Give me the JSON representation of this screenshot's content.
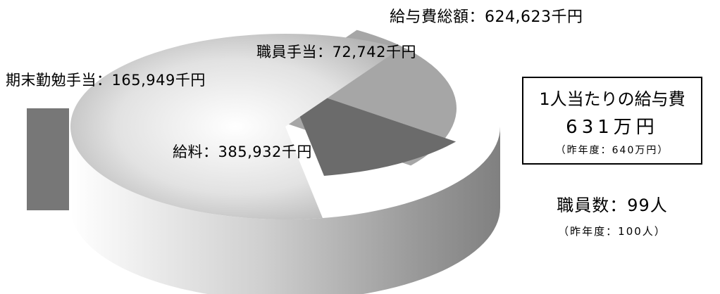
{
  "chart_data": {
    "type": "pie",
    "title": "給与費総額：624,623千円",
    "categories": [
      "給料",
      "期末勤勉手当",
      "職員手当"
    ],
    "values": [
      385932,
      165949,
      72742
    ],
    "labels": [
      "給料：385,932千円",
      "期末勤勉手当：165,949千円",
      "職員手当：72,742千円"
    ],
    "unit": "千円",
    "colors": [
      "#d8d8d8",
      "#a6a6a6",
      "#6b6b6b"
    ],
    "legend": "none"
  },
  "info": {
    "per_person_label": "1人当たりの給与費",
    "per_person_value": "631万円",
    "per_person_prev": "（昨年度：640万円）",
    "staff_count": "職員数：99人",
    "staff_prev": "（昨年度：100人）"
  }
}
